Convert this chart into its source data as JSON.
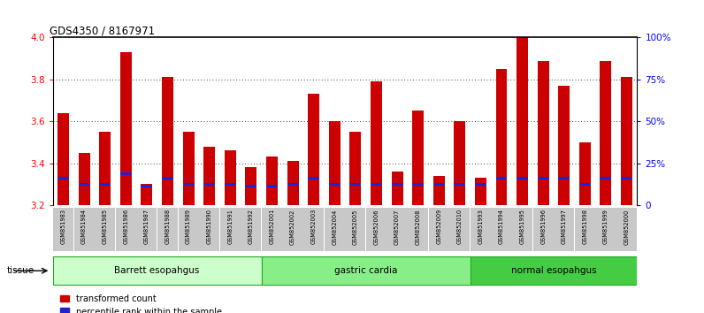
{
  "title": "GDS4350 / 8167971",
  "samples": [
    "GSM851983",
    "GSM851984",
    "GSM851985",
    "GSM851986",
    "GSM851987",
    "GSM851988",
    "GSM851989",
    "GSM851990",
    "GSM851991",
    "GSM851992",
    "GSM852001",
    "GSM852002",
    "GSM852003",
    "GSM852004",
    "GSM852005",
    "GSM852006",
    "GSM852007",
    "GSM852008",
    "GSM852009",
    "GSM852010",
    "GSM851993",
    "GSM851994",
    "GSM851995",
    "GSM851996",
    "GSM851997",
    "GSM851998",
    "GSM851999",
    "GSM852000"
  ],
  "red_values": [
    3.64,
    3.45,
    3.55,
    3.93,
    3.3,
    3.81,
    3.55,
    3.48,
    3.46,
    3.38,
    3.43,
    3.41,
    3.73,
    3.6,
    3.55,
    3.79,
    3.36,
    3.65,
    3.34,
    3.6,
    3.33,
    3.85,
    4.0,
    3.89,
    3.77,
    3.5,
    3.89,
    3.81
  ],
  "blue_values": [
    3.33,
    3.3,
    3.3,
    3.35,
    3.29,
    3.33,
    3.3,
    3.3,
    3.3,
    3.29,
    3.29,
    3.3,
    3.33,
    3.3,
    3.3,
    3.3,
    3.3,
    3.3,
    3.3,
    3.3,
    3.3,
    3.33,
    3.33,
    3.33,
    3.33,
    3.3,
    3.33,
    3.33
  ],
  "groups": [
    {
      "label": "Barrett esopahgus",
      "start": 0,
      "end": 10,
      "color": "#ccffcc"
    },
    {
      "label": "gastric cardia",
      "start": 10,
      "end": 20,
      "color": "#88ee88"
    },
    {
      "label": "normal esopahgus",
      "start": 20,
      "end": 28,
      "color": "#44cc44"
    }
  ],
  "ymin": 3.2,
  "ymax": 4.0,
  "yticks_left": [
    3.2,
    3.4,
    3.6,
    3.8,
    4.0
  ],
  "yticks_right": [
    0,
    25,
    50,
    75,
    100
  ],
  "red_color": "#cc0000",
  "blue_color": "#2222cc",
  "bar_width": 0.55
}
